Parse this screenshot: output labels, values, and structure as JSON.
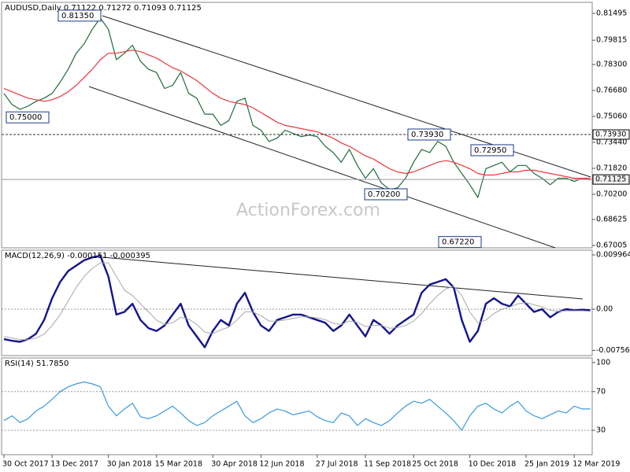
{
  "chart_data": [
    {
      "type": "line",
      "title": "AUDUSD,Daily  0.71122 0.71272 0.71093 0.71125",
      "watermark": "ActionForex.com",
      "ylim": [
        0.6686,
        0.8208
      ],
      "yticks": [
        0.81495,
        0.79815,
        {
          "value": 0.783,
          "label": "0.78300"
        },
        {
          "value": 0.7668,
          "label": "0.76680"
        },
        {
          "value": 0.7506,
          "label": "0.75060"
        },
        {
          "value": 0.7344,
          "label": "0.73440"
        },
        {
          "value": 0.7182,
          "label": "0.71820"
        },
        {
          "value": 0.702,
          "label": "0.70200"
        },
        0.68625,
        0.67005
      ],
      "series": [
        {
          "color": "#1f6b3a",
          "values": [
            0.765,
            0.758,
            0.755,
            0.757,
            0.76,
            0.762,
            0.765,
            0.772,
            0.78,
            0.79,
            0.796,
            0.805,
            0.812,
            0.805,
            0.786,
            0.79,
            0.795,
            0.785,
            0.78,
            0.778,
            0.768,
            0.77,
            0.778,
            0.765,
            0.762,
            0.752,
            0.752,
            0.745,
            0.748,
            0.76,
            0.762,
            0.745,
            0.742,
            0.735,
            0.737,
            0.742,
            0.74,
            0.738,
            0.739,
            0.738,
            0.732,
            0.728,
            0.722,
            0.73,
            0.72,
            0.712,
            0.718,
            0.709,
            0.705,
            0.706,
            0.712,
            0.722,
            0.73,
            0.728,
            0.735,
            0.732,
            0.722,
            0.715,
            0.708,
            0.7,
            0.718,
            0.72,
            0.722,
            0.716,
            0.72,
            0.72,
            0.715,
            0.712,
            0.708,
            0.712,
            0.712,
            0.71,
            0.712,
            0.711
          ]
        },
        {
          "color": "#e8383d",
          "values": [
            0.768,
            0.766,
            0.764,
            0.762,
            0.761,
            0.76,
            0.761,
            0.763,
            0.766,
            0.77,
            0.775,
            0.78,
            0.786,
            0.79,
            0.79,
            0.791,
            0.792,
            0.791,
            0.789,
            0.787,
            0.784,
            0.781,
            0.779,
            0.776,
            0.773,
            0.769,
            0.765,
            0.762,
            0.76,
            0.759,
            0.758,
            0.756,
            0.753,
            0.75,
            0.747,
            0.745,
            0.744,
            0.743,
            0.742,
            0.741,
            0.739,
            0.737,
            0.734,
            0.732,
            0.729,
            0.726,
            0.724,
            0.721,
            0.718,
            0.716,
            0.715,
            0.716,
            0.718,
            0.72,
            0.722,
            0.723,
            0.722,
            0.72,
            0.718,
            0.715,
            0.714,
            0.714,
            0.715,
            0.716,
            0.716,
            0.717,
            0.717,
            0.716,
            0.715,
            0.714,
            0.713,
            0.712,
            0.712,
            0.712
          ]
        }
      ],
      "annotations": [
        {
          "value": 0.8135,
          "label": "0.81350"
        },
        {
          "value": 0.75,
          "label": "0.75000"
        },
        {
          "value": 0.7393,
          "label": "0.73930"
        },
        {
          "value": 0.7295,
          "label": "0.72950"
        },
        {
          "value": 0.702,
          "label": "0.70200"
        },
        {
          "value": 0.6722,
          "label": "0.67220"
        }
      ],
      "price_markers": [
        {
          "value": 0.7393,
          "label": "0.73930",
          "style": "dashed"
        },
        {
          "value": 0.71125,
          "label": "0.71125",
          "style": "solid"
        }
      ]
    },
    {
      "type": "line",
      "title": "MACD(12,26,9) -0.000151 -0.000395",
      "ylim": [
        -0.00852,
        0.01083
      ],
      "yticks": [
        0.009964,
        {
          "value": 0,
          "label": "0.00"
        },
        -0.00756
      ],
      "levels": [
        0
      ],
      "series": [
        {
          "color": "#14148c",
          "values": [
            -0.0055,
            -0.0058,
            -0.006,
            -0.0055,
            -0.0045,
            -0.002,
            0.002,
            0.005,
            0.007,
            0.008,
            0.009,
            0.0095,
            0.0098,
            0.006,
            -0.001,
            -0.0005,
            0.001,
            -0.002,
            -0.0035,
            -0.004,
            -0.003,
            -0.001,
            0.001,
            -0.003,
            -0.005,
            -0.007,
            -0.004,
            -0.002,
            -0.003,
            0.001,
            0.003,
            -0.0005,
            -0.003,
            -0.004,
            -0.002,
            -0.0015,
            -0.001,
            -0.001,
            -0.0015,
            -0.002,
            -0.0025,
            -0.004,
            -0.003,
            -0.001,
            -0.003,
            -0.005,
            -0.002,
            -0.003,
            -0.0045,
            -0.003,
            -0.002,
            -0.001,
            0.003,
            0.0045,
            0.005,
            0.0055,
            0.004,
            -0.002,
            -0.006,
            -0.004,
            0.001,
            0.002,
            0.001,
            0.0005,
            0.0025,
            0.001,
            -0.0005,
            0.0,
            -0.0015,
            -0.0005,
            0.0,
            -0.0002,
            -0.0001,
            -0.0002
          ]
        },
        {
          "color": "#a8a8a8",
          "values": [
            -0.005,
            -0.0053,
            -0.0056,
            -0.0056,
            -0.0053,
            -0.0046,
            -0.003,
            -0.001,
            0.0015,
            0.004,
            0.006,
            0.0075,
            0.0085,
            0.0085,
            0.006,
            0.0035,
            0.0025,
            0.001,
            -0.0005,
            -0.002,
            -0.0028,
            -0.0025,
            -0.0015,
            -0.0018,
            -0.0028,
            -0.0042,
            -0.0045,
            -0.0038,
            -0.0033,
            -0.002,
            -0.0005,
            -0.0005,
            -0.0012,
            -0.0022,
            -0.0022,
            -0.002,
            -0.0017,
            -0.0014,
            -0.0014,
            -0.0016,
            -0.0019,
            -0.0026,
            -0.0028,
            -0.0022,
            -0.0024,
            -0.0032,
            -0.003,
            -0.003,
            -0.0035,
            -0.0034,
            -0.003,
            -0.0022,
            -0.0008,
            0.001,
            0.0025,
            0.0037,
            0.0042,
            0.0025,
            -0.0005,
            -0.0025,
            -0.002,
            -0.0008,
            0.0,
            0.0004,
            0.001,
            0.0012,
            0.0008,
            0.0004,
            -0.0002,
            -0.0004,
            -0.0003,
            -0.0003,
            -0.0003,
            -0.0004
          ]
        }
      ]
    },
    {
      "type": "line",
      "title": "RSI(14) 51.7850",
      "ylim": [
        4.8,
        104.8
      ],
      "yticks": [
        100,
        70,
        30
      ],
      "levels": [
        70,
        30
      ],
      "series": [
        {
          "color": "#3a9ad9",
          "values": [
            40,
            45,
            38,
            42,
            50,
            55,
            62,
            70,
            75,
            78,
            80,
            78,
            75,
            55,
            45,
            52,
            58,
            44,
            42,
            45,
            50,
            55,
            48,
            40,
            35,
            38,
            45,
            50,
            55,
            60,
            45,
            38,
            42,
            48,
            52,
            50,
            46,
            48,
            50,
            44,
            40,
            38,
            48,
            45,
            35,
            42,
            38,
            35,
            40,
            48,
            55,
            60,
            58,
            62,
            55,
            48,
            40,
            30,
            45,
            55,
            58,
            52,
            48,
            55,
            60,
            50,
            45,
            42,
            46,
            50,
            48,
            55,
            52,
            52
          ]
        }
      ],
      "categories": [
        "30 Oct 2017",
        null,
        null,
        null,
        null,
        null,
        "13 Dec 2017",
        null,
        null,
        null,
        null,
        null,
        null,
        "30 Jan 2018",
        null,
        null,
        null,
        null,
        null,
        "15 Mar 2018",
        null,
        null,
        null,
        null,
        null,
        null,
        "30 Apr 2018",
        null,
        null,
        null,
        null,
        null,
        "12 Jun 2018",
        null,
        null,
        null,
        null,
        null,
        null,
        "27 Jul 2018",
        null,
        null,
        null,
        null,
        null,
        "11 Sep 2018",
        null,
        null,
        null,
        null,
        null,
        "25 Oct 2018",
        null,
        null,
        null,
        null,
        null,
        null,
        "10 Dec 2018",
        null,
        null,
        null,
        null,
        null,
        null,
        "25 Jan 2019",
        null,
        null,
        null,
        null,
        null,
        "12 Mar 2019",
        null,
        null
      ]
    }
  ]
}
